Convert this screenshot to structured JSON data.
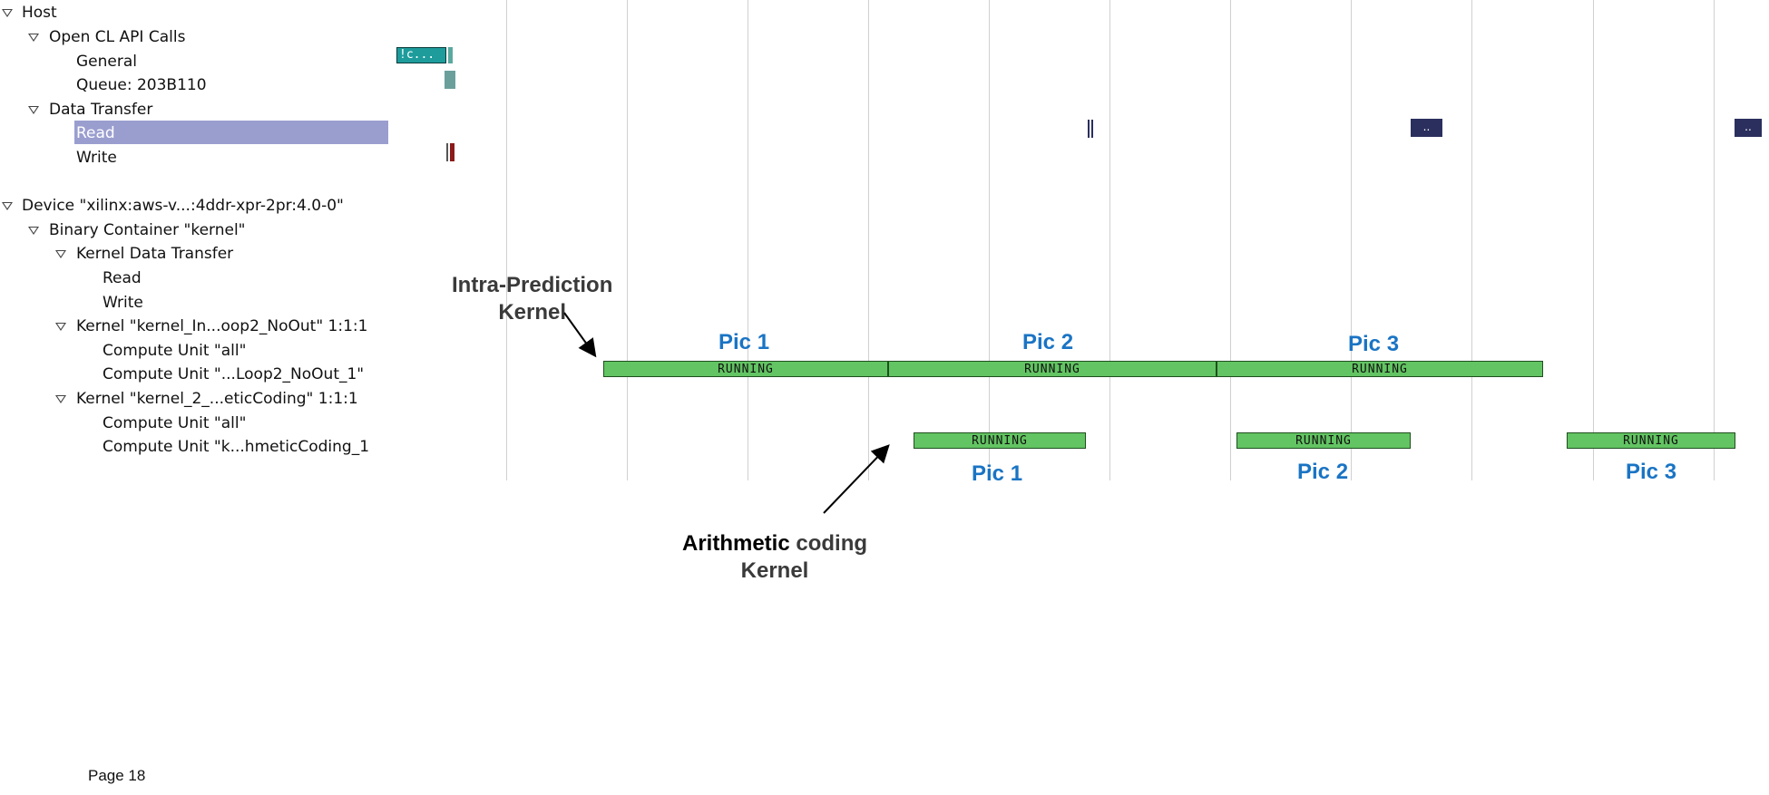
{
  "tree": {
    "host": "Host",
    "opencl_api_calls": "Open CL API Calls",
    "general": "General",
    "queue": "Queue: 203B110",
    "data_transfer": "Data Transfer",
    "read": "Read",
    "write": "Write",
    "device": "Device \"xilinx:aws-v...:4ddr-xpr-2pr:4.0-0\"",
    "binary_container": "Binary Container \"kernel\"",
    "kernel_data_transfer": "Kernel Data Transfer",
    "kdt_read": "Read",
    "kdt_write": "Write",
    "kernel_intra": "Kernel \"kernel_In...oop2_NoOut\" 1:1:1",
    "cu_all_1": "Compute Unit \"all\"",
    "cu_intra": "Compute Unit \"...Loop2_NoOut_1\"",
    "kernel_arith": "Kernel \"kernel_2_...eticCoding\" 1:1:1",
    "cu_all_2": "Compute Unit \"all\"",
    "cu_arith": "Compute Unit \"k...hmeticCoding_1"
  },
  "timeline": {
    "general_event_label": "!c...",
    "read_event_label": "..",
    "intra_bars": [
      "RUNNING",
      "RUNNING",
      "RUNNING"
    ],
    "arith_bars": [
      "RUNNING",
      "RUNNING",
      "RUNNING"
    ]
  },
  "annotations": {
    "intra_title_line1": "Intra-Prediction",
    "intra_title_line2": "Kernel",
    "arith_title_line1_bold": "Arithmetic",
    "arith_title_line1_rest": " coding",
    "arith_title_line2": "Kernel",
    "intra_pics": [
      "Pic 1",
      "Pic 2",
      "Pic 3"
    ],
    "arith_pics": [
      "Pic 1",
      "Pic 2",
      "Pic 3"
    ]
  },
  "footer": {
    "page": "Page 18"
  },
  "colors": {
    "running_fill": "#62c462",
    "selection": "#9a9ecf",
    "pic_label": "#1a74c4",
    "api_event": "#1e9c9c",
    "read_event": "#2b2f5e",
    "write_event": "#8b1a1a"
  }
}
